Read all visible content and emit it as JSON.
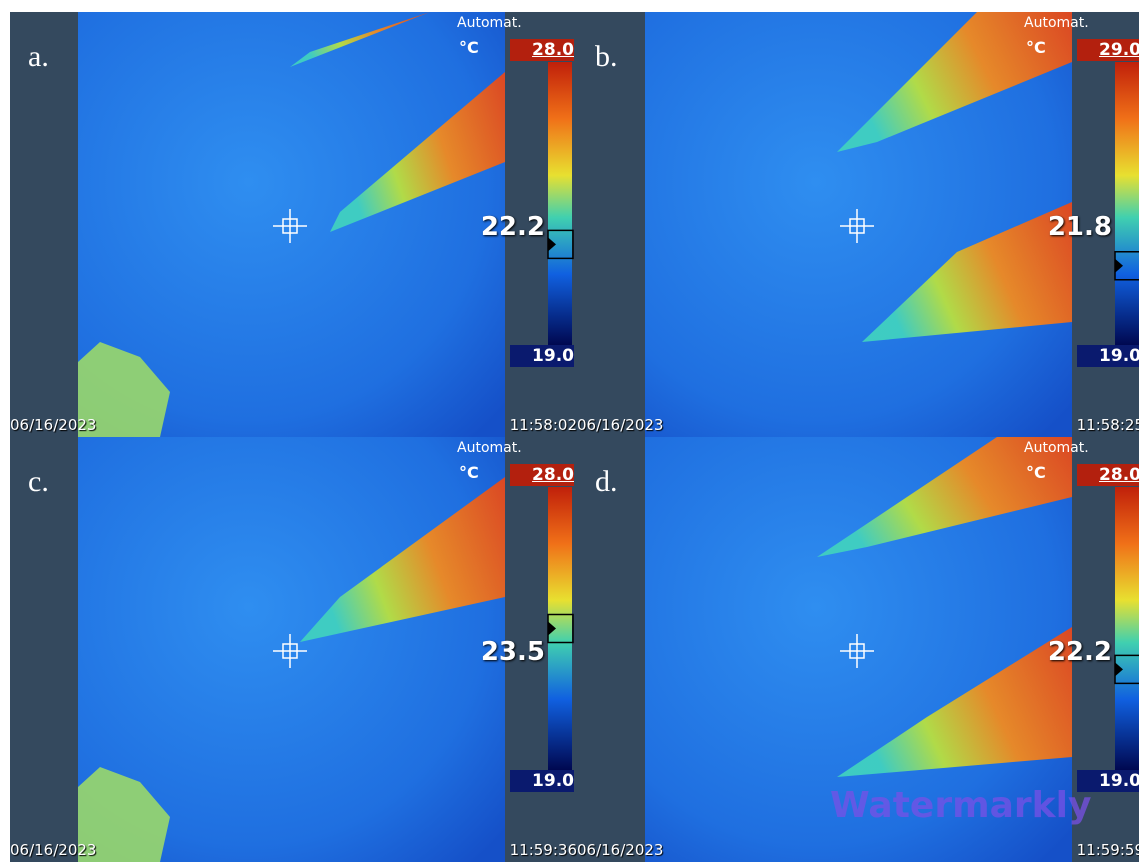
{
  "panels": [
    {
      "label": "a.",
      "mode": "Automat.",
      "unit": "°C",
      "temp_max": "28.0",
      "temp_min": "19.0",
      "center_temp": "22.2",
      "date": "06/16/2023",
      "time": "11:58:02"
    },
    {
      "label": "b.",
      "mode": "Automat.",
      "unit": "°C",
      "temp_max": "29.0",
      "temp_min": "19.0",
      "center_temp": "21.8",
      "date": "06/16/2023",
      "time": "11:58:25"
    },
    {
      "label": "c.",
      "mode": "Automat.",
      "unit": "°C",
      "temp_max": "28.0",
      "temp_min": "19.0",
      "center_temp": "23.5",
      "date": "06/16/2023",
      "time": "11:59:36"
    },
    {
      "label": "d.",
      "mode": "Automat.",
      "unit": "°C",
      "temp_max": "28.0",
      "temp_min": "19.0",
      "center_temp": "22.2",
      "date": "06/16/2023",
      "time": "11:59:59"
    }
  ],
  "watermark": "Watermarkly"
}
